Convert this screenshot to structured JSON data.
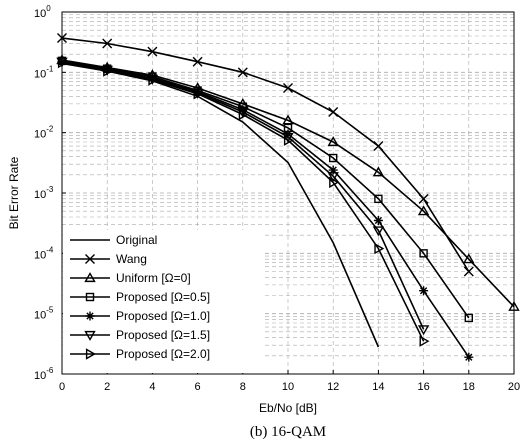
{
  "chart_data": {
    "type": "line",
    "xlabel": "Eb/No [dB]",
    "ylabel": "Bit Error Rate",
    "caption": "(b)  16-QAM",
    "xlim": [
      0,
      20
    ],
    "ylim": [
      1e-06,
      1
    ],
    "yscale": "log",
    "grid": true,
    "legend_position": "bottom-left",
    "x_ticks": [
      "0",
      "2",
      "4",
      "6",
      "8",
      "10",
      "12",
      "14",
      "16",
      "18",
      "20"
    ],
    "y_ticks": [
      {
        "base": "10",
        "exp": "0"
      },
      {
        "base": "10",
        "exp": "-1"
      },
      {
        "base": "10",
        "exp": "-2"
      },
      {
        "base": "10",
        "exp": "-3"
      },
      {
        "base": "10",
        "exp": "-4"
      },
      {
        "base": "10",
        "exp": "-5"
      },
      {
        "base": "10",
        "exp": "-6"
      }
    ],
    "series": [
      {
        "name": "Original",
        "marker": "none",
        "x": [
          0,
          2,
          4,
          6,
          8,
          10,
          12,
          14
        ],
        "y": [
          0.14,
          0.105,
          0.072,
          0.04,
          0.015,
          0.0032,
          0.00015,
          2.8e-06
        ]
      },
      {
        "name": "Wang",
        "marker": "x",
        "x": [
          0,
          2,
          4,
          6,
          8,
          10,
          12,
          14,
          16,
          18
        ],
        "y": [
          0.37,
          0.3,
          0.22,
          0.15,
          0.1,
          0.055,
          0.022,
          0.006,
          0.0008,
          5e-05
        ]
      },
      {
        "name": "Uniform [Ω=0]",
        "marker": "triangle-up",
        "x": [
          0,
          2,
          4,
          6,
          8,
          10,
          12,
          14,
          16,
          18,
          20
        ],
        "y": [
          0.16,
          0.12,
          0.09,
          0.055,
          0.03,
          0.016,
          0.007,
          0.0022,
          0.0005,
          8e-05,
          1.3e-05
        ]
      },
      {
        "name": "Proposed [Ω=0.5]",
        "marker": "square",
        "x": [
          0,
          2,
          4,
          6,
          8,
          10,
          12,
          14,
          16,
          18
        ],
        "y": [
          0.155,
          0.115,
          0.085,
          0.05,
          0.027,
          0.012,
          0.0038,
          0.0008,
          0.0001,
          8.5e-06
        ]
      },
      {
        "name": "Proposed [Ω=1.0]",
        "marker": "star",
        "x": [
          0,
          2,
          4,
          6,
          8,
          10,
          12,
          14,
          16,
          18
        ],
        "y": [
          0.15,
          0.11,
          0.08,
          0.048,
          0.024,
          0.0095,
          0.0024,
          0.00035,
          2.4e-05,
          1.9e-06
        ]
      },
      {
        "name": "Proposed [Ω=1.5]",
        "marker": "triangle-down",
        "x": [
          0,
          2,
          4,
          6,
          8,
          10,
          12,
          14,
          16
        ],
        "y": [
          0.15,
          0.11,
          0.078,
          0.046,
          0.022,
          0.0085,
          0.0019,
          0.00024,
          5.5e-06
        ]
      },
      {
        "name": "Proposed [Ω=2.0]",
        "marker": "triangle-right",
        "x": [
          0,
          2,
          4,
          6,
          8,
          10,
          12,
          14,
          16
        ],
        "y": [
          0.145,
          0.105,
          0.075,
          0.044,
          0.02,
          0.0075,
          0.0015,
          0.00012,
          3.5e-06
        ]
      }
    ]
  }
}
